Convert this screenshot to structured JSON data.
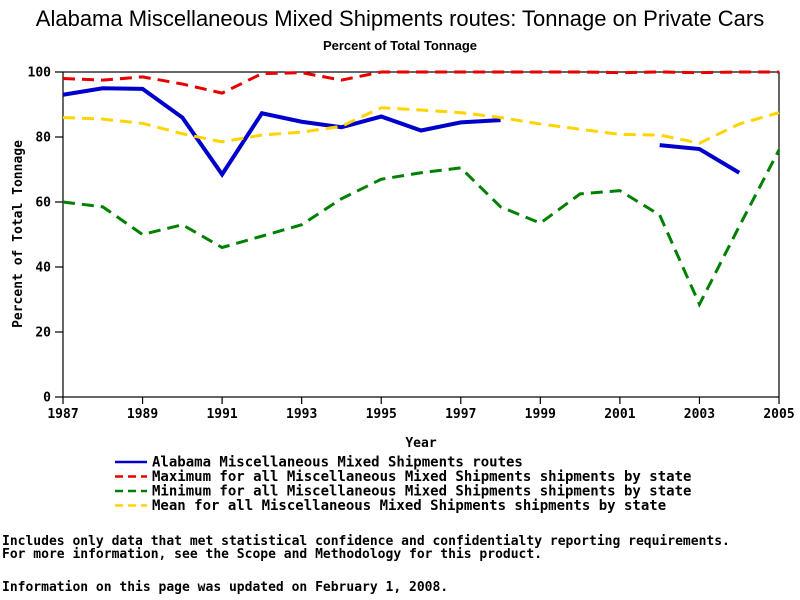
{
  "title": "Alabama Miscellaneous Mixed Shipments routes: Tonnage on Private Cars",
  "subtitle": "Percent of Total Tonnage",
  "chart_data": {
    "type": "line",
    "x": [
      1987,
      1988,
      1989,
      1990,
      1991,
      1992,
      1993,
      1994,
      1995,
      1996,
      1997,
      1998,
      1999,
      2000,
      2001,
      2002,
      2003,
      2004,
      2005
    ],
    "series": [
      {
        "name": "Alabama Miscellaneous Mixed Shipments routes",
        "color": "#0000CC",
        "style": "solid",
        "values": [
          93,
          95,
          94.8,
          86,
          68.5,
          87.3,
          84.7,
          83,
          86.3,
          82,
          84.5,
          85.2,
          null,
          null,
          null,
          77.5,
          76.3,
          69,
          null
        ]
      },
      {
        "name": "Maximum for all Miscellaneous Mixed Shipments shipments by state",
        "color": "#E60000",
        "style": "dashed",
        "values": [
          98,
          97.5,
          98.5,
          96.3,
          93.5,
          99.5,
          99.8,
          97.5,
          100,
          100,
          100,
          100,
          100,
          100,
          99.8,
          100,
          99.8,
          100,
          100
        ]
      },
      {
        "name": "Minimum for all Miscellaneous Mixed Shipments shipments by state",
        "color": "#008000",
        "style": "dashed",
        "values": [
          60,
          58.5,
          50,
          53,
          46,
          49.5,
          53,
          61,
          67,
          69,
          70.5,
          58.5,
          53.5,
          62.5,
          63.5,
          56,
          28.5,
          52.5,
          76
        ]
      },
      {
        "name": "Mean for all Miscellaneous Mixed Shipments shipments by state",
        "color": "#FFD400",
        "style": "dashed",
        "values": [
          86,
          85.5,
          84.2,
          81,
          78.5,
          80.6,
          81.5,
          83.3,
          89,
          88.3,
          87.5,
          86,
          84,
          82.4,
          80.8,
          80.6,
          78.1,
          84,
          87.5
        ]
      }
    ],
    "xlabel": "Year",
    "ylabel": "Percent of Total Tonnage",
    "ylim": [
      0,
      100
    ],
    "yticks": [
      0,
      20,
      40,
      60,
      80,
      100
    ],
    "xticks": [
      1987,
      1989,
      1991,
      1993,
      1995,
      1997,
      1999,
      2001,
      2003,
      2005
    ],
    "grid": false,
    "legend_position": "bottom"
  },
  "footer": {
    "line1": "Includes only data that met statistical confidence and confidentialty reporting requirements.",
    "line2": "For more information, see the Scope and Methodology for this product.",
    "line3": "Information on this page was updated on February 1, 2008."
  }
}
